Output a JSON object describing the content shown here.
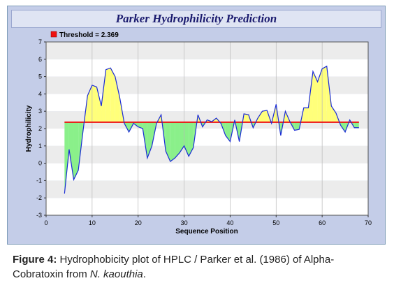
{
  "caption": {
    "label": "Figure 4:",
    "text_before": " Hydrophobicity plot of HPLC / Parker et al. (1986) of Alpha-Cobratoxin from ",
    "species": "N. kaouthia",
    "text_after": "."
  },
  "chart_data": {
    "type": "area",
    "title": "Parker Hydrophilicity Prediction",
    "xlabel": "Sequence Position",
    "ylabel": "Hydrophilicity",
    "xlim": [
      0,
      70
    ],
    "ylim": [
      -3,
      7
    ],
    "xticks": [
      0,
      10,
      20,
      30,
      40,
      50,
      60,
      70
    ],
    "yticks": [
      -3,
      -2,
      -1,
      0,
      1,
      2,
      3,
      4,
      5,
      6,
      7
    ],
    "grid": true,
    "legend": "top-left",
    "threshold": {
      "label": "Threshold = 2.369",
      "value": 2.369,
      "color": "#ee1111"
    },
    "colors": {
      "line": "#1a2bd6",
      "above": "#ffff7a",
      "below": "#8af08a",
      "plot_band_light": "#ffffff",
      "plot_band_dark": "#ececec"
    },
    "series": [
      {
        "x": [
          4,
          5,
          6,
          7,
          8,
          9,
          10,
          11,
          12,
          13,
          14,
          15,
          16,
          17,
          18,
          19,
          20,
          21,
          22,
          23,
          24,
          25,
          26,
          27,
          28,
          29,
          30,
          31,
          32,
          33,
          34,
          35,
          36,
          37,
          38,
          39,
          40,
          41,
          42,
          43,
          44,
          45,
          46,
          47,
          48,
          49,
          50,
          51,
          52,
          53,
          54,
          55,
          56,
          57,
          58,
          59,
          60,
          61,
          62,
          63,
          64,
          65,
          66,
          67,
          68
        ],
        "values": [
          -1.75,
          0.8,
          -0.95,
          -0.4,
          1.8,
          3.9,
          4.5,
          4.4,
          3.3,
          5.4,
          5.5,
          5.0,
          3.8,
          2.3,
          1.8,
          2.3,
          2.1,
          2.0,
          0.3,
          1.0,
          2.3,
          2.8,
          0.7,
          0.1,
          0.3,
          0.6,
          1.0,
          0.4,
          0.9,
          2.8,
          2.1,
          2.5,
          2.4,
          2.6,
          2.3,
          1.6,
          1.25,
          2.5,
          1.25,
          2.85,
          2.8,
          2.05,
          2.6,
          3.0,
          3.05,
          2.3,
          3.4,
          1.6,
          3.0,
          2.4,
          1.9,
          1.95,
          3.2,
          3.2,
          5.3,
          4.7,
          5.45,
          5.6,
          3.3,
          2.9,
          2.2,
          1.8,
          2.5,
          2.05,
          2.05
        ]
      }
    ]
  }
}
